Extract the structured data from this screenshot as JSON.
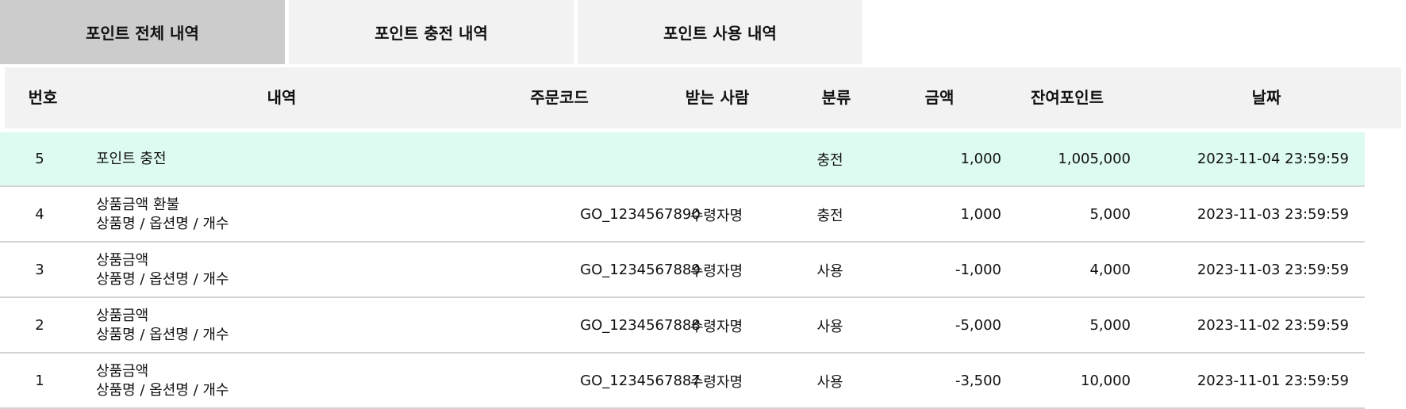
{
  "tabs": [
    {
      "label": "포인트 전체 내역",
      "active": true
    },
    {
      "label": "포인트 충전 내역",
      "active": false
    },
    {
      "label": "포인트 사용 내역",
      "active": false
    }
  ],
  "table": {
    "headers": [
      "번호",
      "내역",
      "주문코드",
      "받는 사람",
      "분류",
      "금액",
      "잔여포인트",
      "날짜"
    ],
    "rows": [
      {
        "num": "5",
        "title": "포인트 충전",
        "sub": "",
        "code": "",
        "receiver": "",
        "category": "충전",
        "amount": "1,000",
        "balance": "1,005,000",
        "date": "2023-11-04 23:59:59",
        "highlight": true
      },
      {
        "num": "4",
        "title": "상품금액 환불",
        "sub": "상품명 / 옵션명 / 개수",
        "code": "GO_1234567890",
        "receiver": "수령자명",
        "category": "충전",
        "amount": "1,000",
        "balance": "5,000",
        "date": "2023-11-03 23:59:59"
      },
      {
        "num": "3",
        "title": "상품금액",
        "sub": "상품명 / 옵션명 / 개수",
        "code": "GO_1234567889",
        "receiver": "수령자명",
        "category": "사용",
        "amount": "-1,000",
        "balance": "4,000",
        "date": "2023-11-03 23:59:59"
      },
      {
        "num": "2",
        "title": "상품금액",
        "sub": "상품명 / 옵션명 / 개수",
        "code": "GO_1234567888",
        "receiver": "수령자명",
        "category": "사용",
        "amount": "-5,000",
        "balance": "5,000",
        "date": "2023-11-02 23:59:59"
      },
      {
        "num": "1",
        "title": "상품금액",
        "sub": "상품명 / 옵션명 / 개수",
        "code": "GO_1234567887",
        "receiver": "수령자명",
        "category": "사용",
        "amount": "-3,500",
        "balance": "10,000",
        "date": "2023-11-01 23:59:59"
      }
    ]
  },
  "colors": {
    "active_tab": "#cccccc",
    "inactive_tab": "#f2f2f2",
    "header_bg": "#f2f2f2",
    "highlight_row": "#ddfbf0"
  }
}
